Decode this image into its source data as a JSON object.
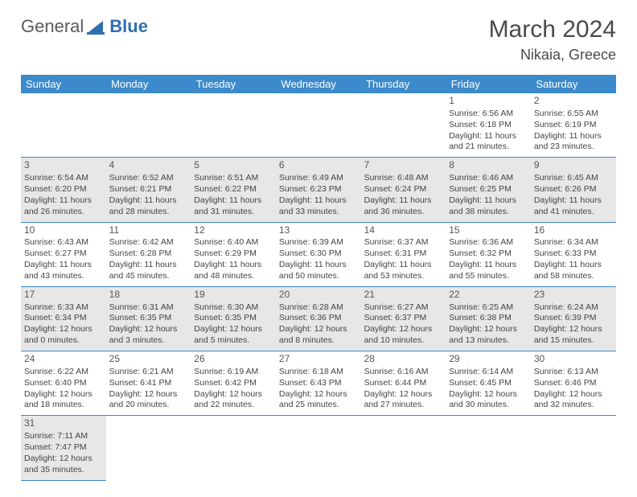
{
  "brand": {
    "part1": "General",
    "part2": "Blue"
  },
  "title": "March 2024",
  "location": "Nikaia, Greece",
  "colors": {
    "header_bg": "#3c8acb",
    "header_text": "#ffffff",
    "odd_row_bg": "#e7e7e7",
    "even_row_bg": "#ffffff",
    "text": "#444444",
    "border": "#3c8acb",
    "brand_gray": "#5a5a5a",
    "brand_blue": "#2f6fb0"
  },
  "day_headers": [
    "Sunday",
    "Monday",
    "Tuesday",
    "Wednesday",
    "Thursday",
    "Friday",
    "Saturday"
  ],
  "weeks": [
    [
      null,
      null,
      null,
      null,
      null,
      {
        "n": "1",
        "sr": "Sunrise: 6:56 AM",
        "ss": "Sunset: 6:18 PM",
        "dl": "Daylight: 11 hours and 21 minutes."
      },
      {
        "n": "2",
        "sr": "Sunrise: 6:55 AM",
        "ss": "Sunset: 6:19 PM",
        "dl": "Daylight: 11 hours and 23 minutes."
      }
    ],
    [
      {
        "n": "3",
        "sr": "Sunrise: 6:54 AM",
        "ss": "Sunset: 6:20 PM",
        "dl": "Daylight: 11 hours and 26 minutes."
      },
      {
        "n": "4",
        "sr": "Sunrise: 6:52 AM",
        "ss": "Sunset: 6:21 PM",
        "dl": "Daylight: 11 hours and 28 minutes."
      },
      {
        "n": "5",
        "sr": "Sunrise: 6:51 AM",
        "ss": "Sunset: 6:22 PM",
        "dl": "Daylight: 11 hours and 31 minutes."
      },
      {
        "n": "6",
        "sr": "Sunrise: 6:49 AM",
        "ss": "Sunset: 6:23 PM",
        "dl": "Daylight: 11 hours and 33 minutes."
      },
      {
        "n": "7",
        "sr": "Sunrise: 6:48 AM",
        "ss": "Sunset: 6:24 PM",
        "dl": "Daylight: 11 hours and 36 minutes."
      },
      {
        "n": "8",
        "sr": "Sunrise: 6:46 AM",
        "ss": "Sunset: 6:25 PM",
        "dl": "Daylight: 11 hours and 38 minutes."
      },
      {
        "n": "9",
        "sr": "Sunrise: 6:45 AM",
        "ss": "Sunset: 6:26 PM",
        "dl": "Daylight: 11 hours and 41 minutes."
      }
    ],
    [
      {
        "n": "10",
        "sr": "Sunrise: 6:43 AM",
        "ss": "Sunset: 6:27 PM",
        "dl": "Daylight: 11 hours and 43 minutes."
      },
      {
        "n": "11",
        "sr": "Sunrise: 6:42 AM",
        "ss": "Sunset: 6:28 PM",
        "dl": "Daylight: 11 hours and 45 minutes."
      },
      {
        "n": "12",
        "sr": "Sunrise: 6:40 AM",
        "ss": "Sunset: 6:29 PM",
        "dl": "Daylight: 11 hours and 48 minutes."
      },
      {
        "n": "13",
        "sr": "Sunrise: 6:39 AM",
        "ss": "Sunset: 6:30 PM",
        "dl": "Daylight: 11 hours and 50 minutes."
      },
      {
        "n": "14",
        "sr": "Sunrise: 6:37 AM",
        "ss": "Sunset: 6:31 PM",
        "dl": "Daylight: 11 hours and 53 minutes."
      },
      {
        "n": "15",
        "sr": "Sunrise: 6:36 AM",
        "ss": "Sunset: 6:32 PM",
        "dl": "Daylight: 11 hours and 55 minutes."
      },
      {
        "n": "16",
        "sr": "Sunrise: 6:34 AM",
        "ss": "Sunset: 6:33 PM",
        "dl": "Daylight: 11 hours and 58 minutes."
      }
    ],
    [
      {
        "n": "17",
        "sr": "Sunrise: 6:33 AM",
        "ss": "Sunset: 6:34 PM",
        "dl": "Daylight: 12 hours and 0 minutes."
      },
      {
        "n": "18",
        "sr": "Sunrise: 6:31 AM",
        "ss": "Sunset: 6:35 PM",
        "dl": "Daylight: 12 hours and 3 minutes."
      },
      {
        "n": "19",
        "sr": "Sunrise: 6:30 AM",
        "ss": "Sunset: 6:35 PM",
        "dl": "Daylight: 12 hours and 5 minutes."
      },
      {
        "n": "20",
        "sr": "Sunrise: 6:28 AM",
        "ss": "Sunset: 6:36 PM",
        "dl": "Daylight: 12 hours and 8 minutes."
      },
      {
        "n": "21",
        "sr": "Sunrise: 6:27 AM",
        "ss": "Sunset: 6:37 PM",
        "dl": "Daylight: 12 hours and 10 minutes."
      },
      {
        "n": "22",
        "sr": "Sunrise: 6:25 AM",
        "ss": "Sunset: 6:38 PM",
        "dl": "Daylight: 12 hours and 13 minutes."
      },
      {
        "n": "23",
        "sr": "Sunrise: 6:24 AM",
        "ss": "Sunset: 6:39 PM",
        "dl": "Daylight: 12 hours and 15 minutes."
      }
    ],
    [
      {
        "n": "24",
        "sr": "Sunrise: 6:22 AM",
        "ss": "Sunset: 6:40 PM",
        "dl": "Daylight: 12 hours and 18 minutes."
      },
      {
        "n": "25",
        "sr": "Sunrise: 6:21 AM",
        "ss": "Sunset: 6:41 PM",
        "dl": "Daylight: 12 hours and 20 minutes."
      },
      {
        "n": "26",
        "sr": "Sunrise: 6:19 AM",
        "ss": "Sunset: 6:42 PM",
        "dl": "Daylight: 12 hours and 22 minutes."
      },
      {
        "n": "27",
        "sr": "Sunrise: 6:18 AM",
        "ss": "Sunset: 6:43 PM",
        "dl": "Daylight: 12 hours and 25 minutes."
      },
      {
        "n": "28",
        "sr": "Sunrise: 6:16 AM",
        "ss": "Sunset: 6:44 PM",
        "dl": "Daylight: 12 hours and 27 minutes."
      },
      {
        "n": "29",
        "sr": "Sunrise: 6:14 AM",
        "ss": "Sunset: 6:45 PM",
        "dl": "Daylight: 12 hours and 30 minutes."
      },
      {
        "n": "30",
        "sr": "Sunrise: 6:13 AM",
        "ss": "Sunset: 6:46 PM",
        "dl": "Daylight: 12 hours and 32 minutes."
      }
    ],
    [
      {
        "n": "31",
        "sr": "Sunrise: 7:11 AM",
        "ss": "Sunset: 7:47 PM",
        "dl": "Daylight: 12 hours and 35 minutes."
      },
      null,
      null,
      null,
      null,
      null,
      null
    ]
  ]
}
